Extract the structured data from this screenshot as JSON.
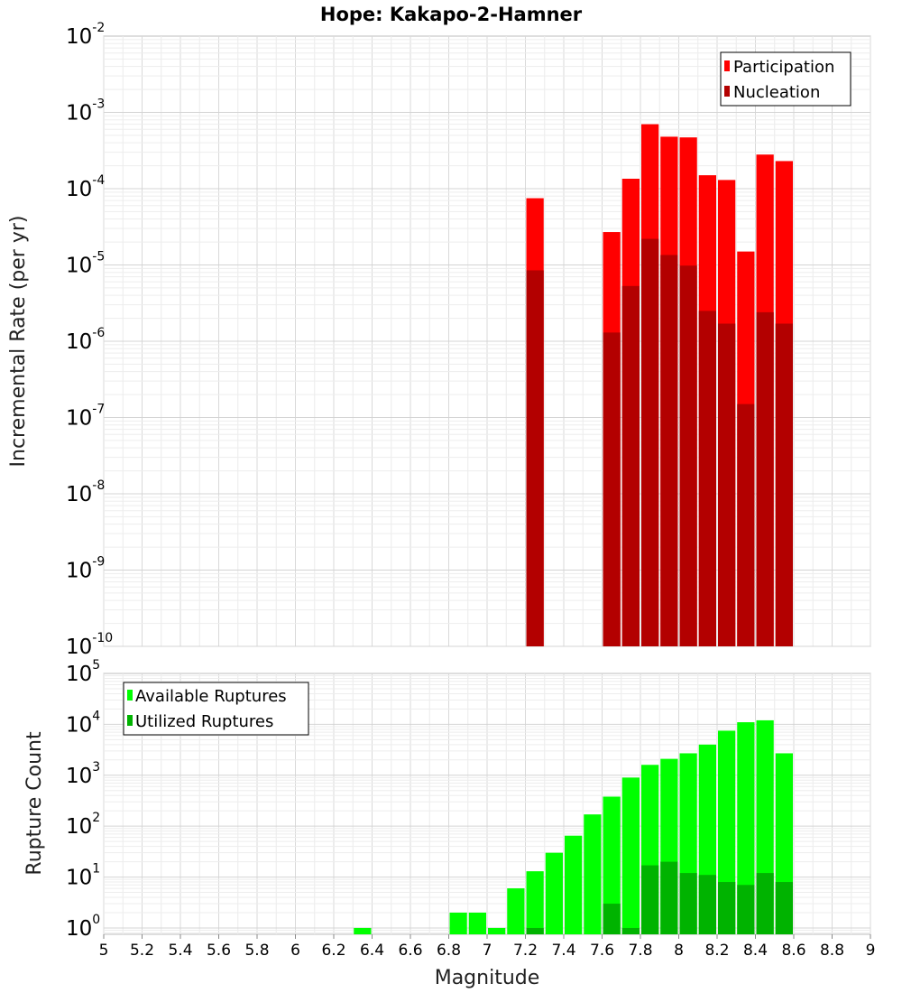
{
  "chart_data": [
    {
      "type": "bar",
      "title": "Hope: Kakapo-2-Hamner",
      "xlabel": "",
      "ylabel": "Incremental Rate (per yr)",
      "xlim": [
        5,
        9
      ],
      "ylim": [
        1e-10,
        0.01
      ],
      "yscale": "log",
      "grid": true,
      "legend_position": "top-right",
      "x": [
        7.25,
        7.65,
        7.75,
        7.85,
        7.95,
        8.05,
        8.15,
        8.25,
        8.35,
        8.45,
        8.55
      ],
      "series": [
        {
          "name": "Participation",
          "color": "#ff0000",
          "values": [
            7.5e-05,
            2.7e-05,
            0.000135,
            0.0007,
            0.00048,
            0.00047,
            0.00015,
            0.00013,
            1.5e-05,
            0.00028,
            0.00023
          ]
        },
        {
          "name": "Nucleation",
          "color": "#b30000",
          "values": [
            8.5e-06,
            1.3e-06,
            5.3e-06,
            2.2e-05,
            1.35e-05,
            9.8e-06,
            2.5e-06,
            1.7e-06,
            1.5e-07,
            2.4e-06,
            1.7e-06
          ]
        }
      ]
    },
    {
      "type": "bar",
      "title": "",
      "xlabel": "Magnitude",
      "ylabel": "Rupture Count",
      "xlim": [
        5,
        9
      ],
      "ylim": [
        0.75,
        100000
      ],
      "yscale": "log",
      "grid": true,
      "legend_position": "top-left",
      "x": [
        6.35,
        6.85,
        6.95,
        7.05,
        7.15,
        7.25,
        7.35,
        7.45,
        7.55,
        7.65,
        7.75,
        7.85,
        7.95,
        8.05,
        8.15,
        8.25,
        8.35,
        8.45,
        8.55
      ],
      "series": [
        {
          "name": "Available Ruptures",
          "color": "#00ff00",
          "values": [
            1,
            2,
            2,
            1,
            6,
            13,
            30,
            65,
            170,
            380,
            900,
            1600,
            2100,
            2700,
            4000,
            7500,
            11000,
            12000,
            2700
          ]
        },
        {
          "name": "Utilized Ruptures",
          "color": "#00b300",
          "values": [
            0,
            0,
            0,
            0,
            0,
            1,
            0,
            0,
            0,
            3,
            1,
            17,
            20,
            12,
            11,
            8,
            7,
            12,
            8
          ]
        }
      ]
    }
  ],
  "xticks": [
    "5",
    "5.2",
    "5.4",
    "5.6",
    "5.8",
    "6",
    "6.2",
    "6.4",
    "6.6",
    "6.8",
    "7",
    "7.2",
    "7.4",
    "7.6",
    "7.8",
    "8",
    "8.2",
    "8.4",
    "8.6",
    "8.8",
    "9"
  ],
  "top_yticks": [
    {
      "base": "10",
      "exp": "-2"
    },
    {
      "base": "10",
      "exp": "-3"
    },
    {
      "base": "10",
      "exp": "-4"
    },
    {
      "base": "10",
      "exp": "-5"
    },
    {
      "base": "10",
      "exp": "-6"
    },
    {
      "base": "10",
      "exp": "-7"
    },
    {
      "base": "10",
      "exp": "-8"
    },
    {
      "base": "10",
      "exp": "-9"
    },
    {
      "base": "10",
      "exp": "-10"
    }
  ],
  "bottom_yticks": [
    {
      "base": "10",
      "exp": "5"
    },
    {
      "base": "10",
      "exp": "4"
    },
    {
      "base": "10",
      "exp": "3"
    },
    {
      "base": "10",
      "exp": "2"
    },
    {
      "base": "10",
      "exp": "1"
    },
    {
      "base": "10",
      "exp": "0"
    }
  ]
}
